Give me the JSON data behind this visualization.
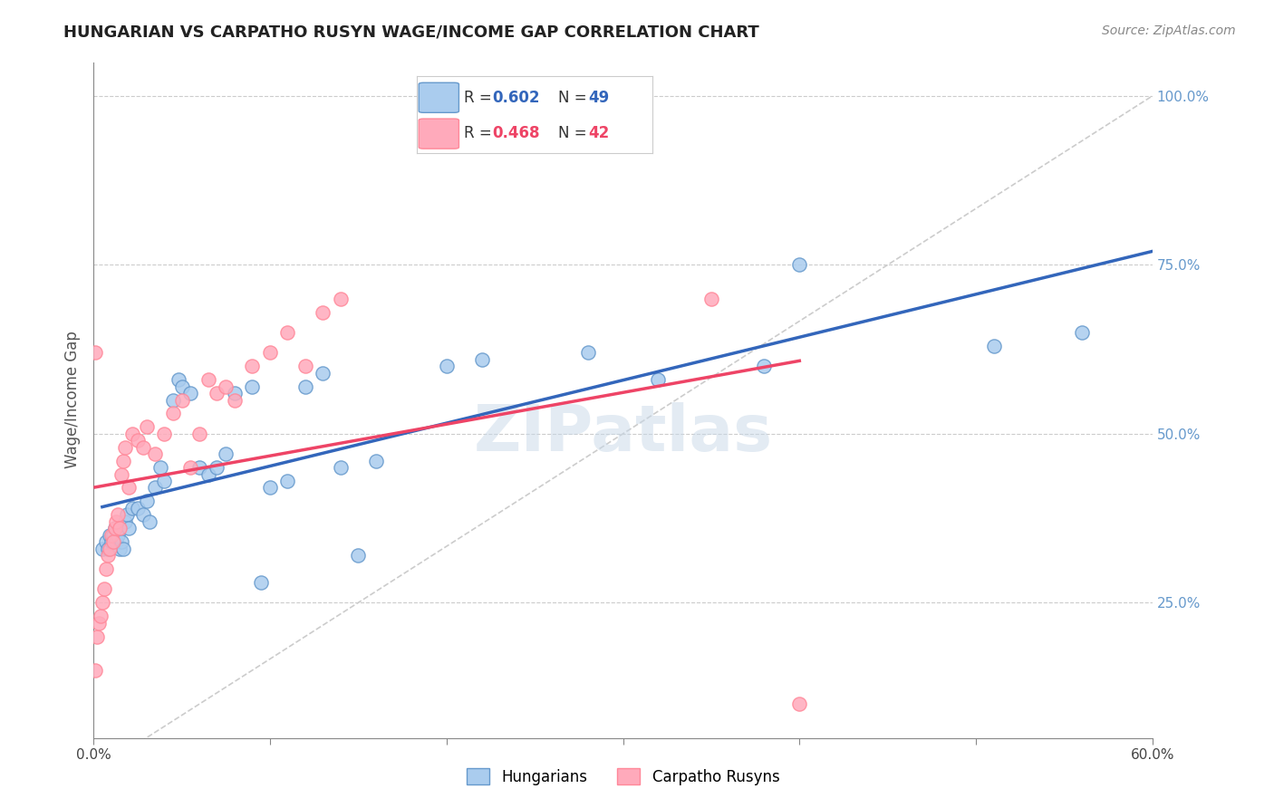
{
  "title": "HUNGARIAN VS CARPATHO RUSYN WAGE/INCOME GAP CORRELATION CHART",
  "source": "Source: ZipAtlas.com",
  "ylabel": "Wage/Income Gap",
  "xlim": [
    0.0,
    0.6
  ],
  "ylim": [
    0.05,
    1.05
  ],
  "y_ticks": [
    0.25,
    0.5,
    0.75,
    1.0
  ],
  "y_tick_labels": [
    "25.0%",
    "50.0%",
    "75.0%",
    "100.0%"
  ],
  "x_ticks": [
    0.0,
    0.1,
    0.2,
    0.3,
    0.4,
    0.5,
    0.6
  ],
  "x_tick_labels": [
    "0.0%",
    "",
    "",
    "",
    "",
    "",
    "60.0%"
  ],
  "blue_color": "#6699cc",
  "pink_color": "#ff8899",
  "blue_scatter_color": "#aaccee",
  "pink_scatter_color": "#ffaabb",
  "blue_line_color": "#3366bb",
  "pink_line_color": "#ee4466",
  "ref_line_color": "#cccccc",
  "watermark_color": "#c8d8e8",
  "background_color": "#ffffff",
  "hungarian_x": [
    0.005,
    0.007,
    0.008,
    0.009,
    0.01,
    0.011,
    0.012,
    0.013,
    0.014,
    0.015,
    0.016,
    0.017,
    0.018,
    0.019,
    0.02,
    0.022,
    0.025,
    0.028,
    0.03,
    0.032,
    0.035,
    0.038,
    0.04,
    0.045,
    0.048,
    0.05,
    0.055,
    0.06,
    0.065,
    0.07,
    0.075,
    0.08,
    0.09,
    0.095,
    0.1,
    0.11,
    0.12,
    0.13,
    0.14,
    0.15,
    0.16,
    0.2,
    0.22,
    0.28,
    0.32,
    0.38,
    0.4,
    0.51,
    0.56
  ],
  "hungarian_y": [
    0.33,
    0.34,
    0.33,
    0.35,
    0.34,
    0.35,
    0.36,
    0.34,
    0.35,
    0.33,
    0.34,
    0.33,
    0.37,
    0.38,
    0.36,
    0.39,
    0.39,
    0.38,
    0.4,
    0.37,
    0.42,
    0.45,
    0.43,
    0.55,
    0.58,
    0.57,
    0.56,
    0.45,
    0.44,
    0.45,
    0.47,
    0.56,
    0.57,
    0.28,
    0.42,
    0.43,
    0.57,
    0.59,
    0.45,
    0.32,
    0.46,
    0.6,
    0.61,
    0.62,
    0.58,
    0.6,
    0.75,
    0.63,
    0.65
  ],
  "rusyn_x": [
    0.001,
    0.002,
    0.003,
    0.004,
    0.005,
    0.006,
    0.007,
    0.008,
    0.009,
    0.01,
    0.011,
    0.012,
    0.013,
    0.014,
    0.015,
    0.016,
    0.017,
    0.018,
    0.02,
    0.022,
    0.025,
    0.028,
    0.03,
    0.035,
    0.04,
    0.045,
    0.05,
    0.055,
    0.06,
    0.065,
    0.07,
    0.075,
    0.08,
    0.09,
    0.1,
    0.11,
    0.12,
    0.13,
    0.14,
    0.35,
    0.4,
    0.001
  ],
  "rusyn_y": [
    0.15,
    0.2,
    0.22,
    0.23,
    0.25,
    0.27,
    0.3,
    0.32,
    0.33,
    0.35,
    0.34,
    0.36,
    0.37,
    0.38,
    0.36,
    0.44,
    0.46,
    0.48,
    0.42,
    0.5,
    0.49,
    0.48,
    0.51,
    0.47,
    0.5,
    0.53,
    0.55,
    0.45,
    0.5,
    0.58,
    0.56,
    0.57,
    0.55,
    0.6,
    0.62,
    0.65,
    0.6,
    0.68,
    0.7,
    0.7,
    0.1,
    0.62
  ]
}
